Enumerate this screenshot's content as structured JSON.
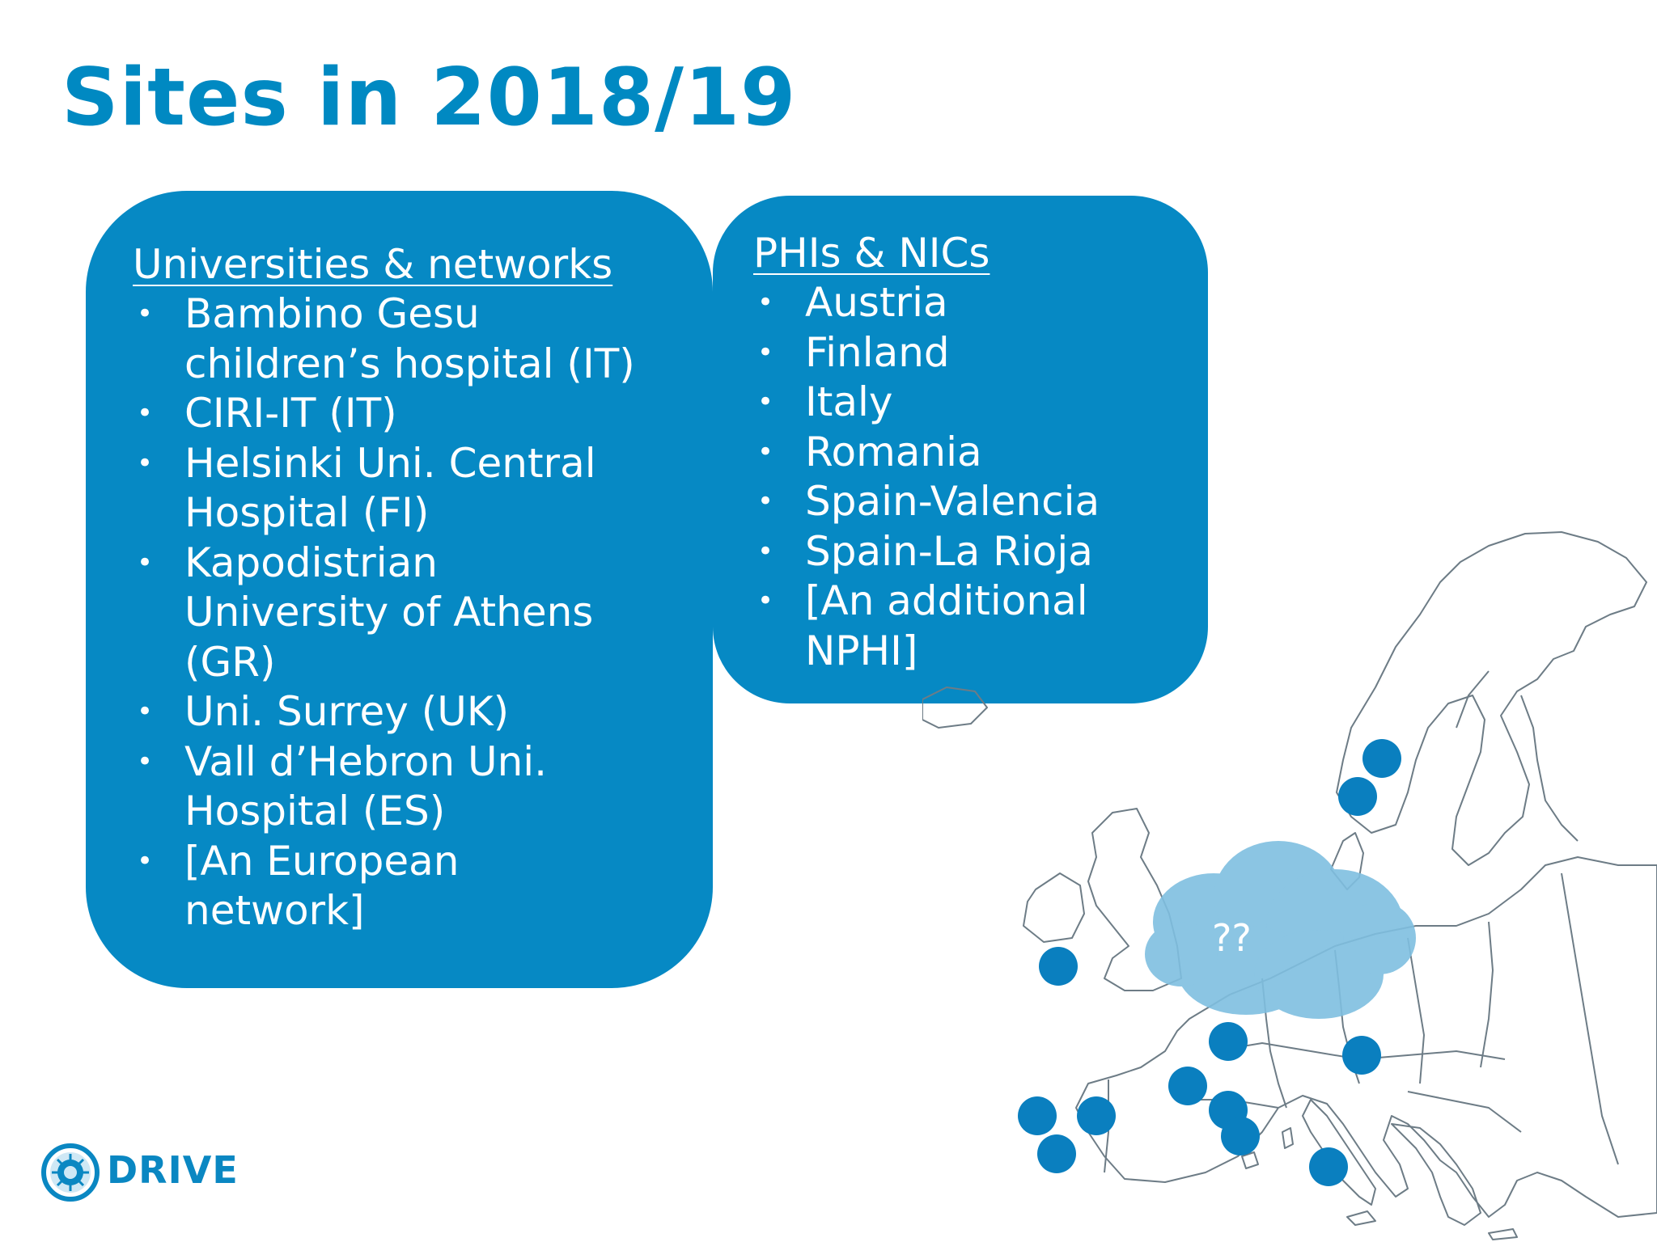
{
  "slide": {
    "title": "Sites in 2018/19"
  },
  "left_panel": {
    "heading": "Universities & networks",
    "items": [
      {
        "lines": [
          "Bambino Gesu",
          "children’s hospital (IT)"
        ]
      },
      {
        "lines": [
          "CIRI-IT (IT)"
        ]
      },
      {
        "lines": [
          "Helsinki Uni. Central",
          "Hospital (FI)"
        ]
      },
      {
        "lines": [
          "Kapodistrian",
          "University of Athens",
          "(GR)"
        ]
      },
      {
        "lines": [
          "Uni. Surrey (UK)"
        ]
      },
      {
        "lines": [
          "Vall d’Hebron Uni.",
          "Hospital (ES)"
        ]
      },
      {
        "lines": [
          "[An European",
          "network]"
        ]
      }
    ]
  },
  "right_panel": {
    "heading": "PHIs & NICs",
    "items": [
      {
        "lines": [
          "Austria"
        ]
      },
      {
        "lines": [
          "Finland"
        ]
      },
      {
        "lines": [
          "Italy"
        ]
      },
      {
        "lines": [
          "Romania"
        ]
      },
      {
        "lines": [
          "Spain-Valencia"
        ]
      },
      {
        "lines": [
          "Spain-La Rioja"
        ]
      },
      {
        "lines": [
          "[An additional",
          "NPHI]"
        ]
      }
    ]
  },
  "map": {
    "cloud_label": "??"
  },
  "logo": {
    "text": "DRIVE"
  },
  "colors": {
    "accent": "#0089c2",
    "panel": "#0689c4",
    "marker": "#0a7fbf",
    "cloud": "#7fbfe0",
    "map_outline": "#6d7c86"
  }
}
